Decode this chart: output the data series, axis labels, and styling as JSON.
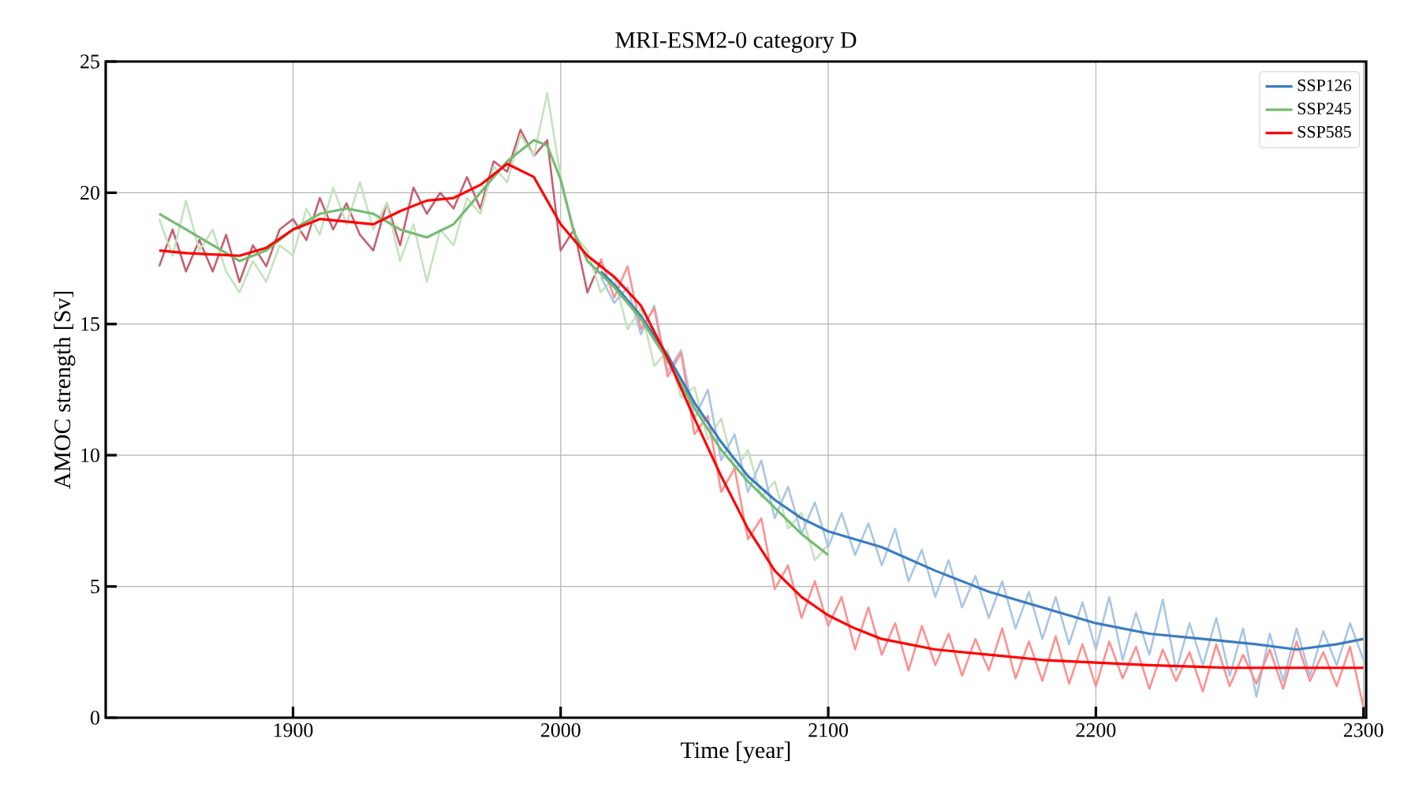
{
  "chart_data": {
    "type": "line",
    "title": "MRI-ESM2-0 category D",
    "xlabel": "Time [year]",
    "ylabel": "AMOC strength [Sv]",
    "xlim": [
      1830,
      2301
    ],
    "ylim": [
      0,
      25
    ],
    "xticks": [
      1900,
      2000,
      2100,
      2200,
      2300
    ],
    "yticks": [
      0,
      5,
      10,
      15,
      20,
      25
    ],
    "grid": true,
    "legend": "top right",
    "series": [
      {
        "color": "#c46070",
        "x": [
          1850,
          1855,
          1860,
          1865,
          1870,
          1875,
          1880,
          1885,
          1890,
          1895,
          1900,
          1905,
          1910,
          1915,
          1920,
          1925,
          1930,
          1935,
          1940,
          1945,
          1950,
          1955,
          1960,
          1965,
          1970,
          1975,
          1980,
          1985,
          1990,
          1995,
          2000,
          2005,
          2010,
          2015
        ],
        "values": [
          17.2,
          18.6,
          17.0,
          18.2,
          17.0,
          18.4,
          16.6,
          18.0,
          17.2,
          18.6,
          19.0,
          18.2,
          19.8,
          18.6,
          19.6,
          18.4,
          17.8,
          19.6,
          18.0,
          20.2,
          19.2,
          20.0,
          19.4,
          20.6,
          19.4,
          21.2,
          20.8,
          22.4,
          21.4,
          22.0,
          17.8,
          18.6,
          16.2,
          17.4
        ]
      },
      {
        "color": "#c4e2bf",
        "x": [
          1850,
          1855,
          1860,
          1865,
          1870,
          1875,
          1880,
          1885,
          1890,
          1895,
          1900,
          1905,
          1910,
          1915,
          1920,
          1925,
          1930,
          1935,
          1940,
          1945,
          1950,
          1955,
          1960,
          1965,
          1970,
          1975,
          1980,
          1985,
          1990,
          1995,
          2000,
          2005,
          2010,
          2015,
          2020,
          2025,
          2030,
          2035,
          2040,
          2045,
          2050,
          2055,
          2060,
          2065,
          2070,
          2075,
          2080,
          2085,
          2090,
          2095,
          2100
        ],
        "values": [
          19.0,
          17.6,
          19.7,
          17.8,
          18.6,
          17.0,
          16.2,
          17.4,
          16.6,
          18.0,
          17.6,
          19.4,
          18.4,
          20.2,
          18.8,
          20.4,
          18.6,
          19.6,
          17.4,
          18.8,
          16.6,
          18.6,
          18.0,
          19.8,
          19.2,
          21.0,
          20.4,
          22.2,
          21.4,
          23.8,
          20.6,
          18.4,
          17.8,
          16.2,
          16.8,
          14.8,
          15.6,
          13.4,
          14.0,
          12.2,
          12.6,
          10.6,
          11.4,
          9.4,
          10.2,
          8.4,
          9.0,
          7.2,
          7.8,
          6.0,
          6.6
        ]
      },
      {
        "color": "#a9c6e4",
        "x": [
          2015,
          2020,
          2025,
          2030,
          2035,
          2040,
          2045,
          2050,
          2055,
          2060,
          2065,
          2070,
          2075,
          2080,
          2085,
          2090,
          2095,
          2100,
          2105,
          2110,
          2115,
          2120,
          2125,
          2130,
          2135,
          2140,
          2145,
          2150,
          2155,
          2160,
          2165,
          2170,
          2175,
          2180,
          2185,
          2190,
          2195,
          2200,
          2205,
          2210,
          2215,
          2220,
          2225,
          2230,
          2235,
          2240,
          2245,
          2250,
          2255,
          2260,
          2265,
          2270,
          2275,
          2280,
          2285,
          2290,
          2295,
          2300
        ],
        "values": [
          16.8,
          15.8,
          16.4,
          14.6,
          15.7,
          13.2,
          14.0,
          11.4,
          12.5,
          9.8,
          10.8,
          8.6,
          9.8,
          7.6,
          8.8,
          7.0,
          8.2,
          6.5,
          7.8,
          6.2,
          7.4,
          5.8,
          7.2,
          5.2,
          6.4,
          4.6,
          6.0,
          4.2,
          5.4,
          3.8,
          5.2,
          3.4,
          4.8,
          3.0,
          4.6,
          2.8,
          4.4,
          2.6,
          4.6,
          2.2,
          4.0,
          2.4,
          4.5,
          1.8,
          3.6,
          2.0,
          3.8,
          1.6,
          3.4,
          0.8,
          3.2,
          1.4,
          3.4,
          1.6,
          3.3,
          2.0,
          3.6,
          2.2
        ]
      },
      {
        "color": "#ff9090",
        "x": [
          2015,
          2020,
          2025,
          2030,
          2035,
          2040,
          2045,
          2050,
          2055,
          2060,
          2065,
          2070,
          2075,
          2080,
          2085,
          2090,
          2095,
          2100,
          2105,
          2110,
          2115,
          2120,
          2125,
          2130,
          2135,
          2140,
          2145,
          2150,
          2155,
          2160,
          2165,
          2170,
          2175,
          2180,
          2185,
          2190,
          2195,
          2200,
          2205,
          2210,
          2215,
          2220,
          2225,
          2230,
          2235,
          2240,
          2245,
          2250,
          2255,
          2260,
          2265,
          2270,
          2275,
          2280,
          2285,
          2290,
          2295,
          2300
        ],
        "values": [
          17.5,
          16.0,
          17.2,
          14.8,
          15.6,
          13.0,
          13.9,
          10.8,
          11.5,
          8.6,
          9.5,
          6.8,
          7.6,
          4.9,
          5.8,
          3.8,
          5.2,
          3.5,
          4.6,
          2.6,
          4.2,
          2.4,
          3.6,
          1.8,
          3.5,
          2.0,
          3.2,
          1.6,
          3.0,
          1.8,
          3.4,
          1.5,
          2.9,
          1.4,
          3.1,
          1.3,
          2.8,
          1.2,
          2.9,
          1.5,
          2.7,
          1.1,
          2.6,
          1.4,
          2.5,
          1.0,
          2.8,
          1.2,
          2.4,
          1.3,
          2.6,
          1.1,
          2.9,
          1.4,
          2.5,
          1.2,
          2.7,
          0.4
        ]
      },
      {
        "name": "SSP126",
        "color": "#3a7cc0",
        "x": [
          2015,
          2020,
          2030,
          2040,
          2050,
          2060,
          2070,
          2080,
          2090,
          2100,
          2120,
          2140,
          2160,
          2180,
          2200,
          2220,
          2240,
          2260,
          2275,
          2290,
          2300
        ],
        "values": [
          17.0,
          16.5,
          15.3,
          13.8,
          12.0,
          10.5,
          9.2,
          8.3,
          7.6,
          7.1,
          6.5,
          5.6,
          4.8,
          4.2,
          3.6,
          3.2,
          3.0,
          2.8,
          2.6,
          2.8,
          3.0
        ]
      },
      {
        "name": "SSP245",
        "color": "#76bb72",
        "x": [
          1850,
          1860,
          1870,
          1880,
          1890,
          1900,
          1910,
          1920,
          1930,
          1940,
          1950,
          1960,
          1970,
          1980,
          1990,
          1995,
          2000,
          2005,
          2010,
          2020,
          2030,
          2040,
          2050,
          2060,
          2070,
          2080,
          2090,
          2100
        ],
        "values": [
          19.2,
          18.6,
          18.0,
          17.4,
          17.8,
          18.6,
          19.2,
          19.4,
          19.2,
          18.6,
          18.3,
          18.8,
          20.0,
          21.2,
          22.0,
          21.8,
          20.5,
          18.5,
          17.4,
          16.4,
          15.2,
          13.6,
          11.8,
          10.2,
          9.0,
          8.0,
          7.0,
          6.2
        ]
      },
      {
        "name": "SSP585",
        "color": "#ff0000",
        "x": [
          1850,
          1860,
          1880,
          1890,
          1900,
          1910,
          1920,
          1930,
          1940,
          1950,
          1960,
          1970,
          1980,
          1990,
          2000,
          2010,
          2020,
          2030,
          2040,
          2050,
          2060,
          2070,
          2080,
          2090,
          2100,
          2110,
          2120,
          2140,
          2160,
          2180,
          2200,
          2220,
          2250,
          2280,
          2300
        ],
        "values": [
          17.8,
          17.7,
          17.6,
          17.9,
          18.6,
          19.0,
          18.9,
          18.8,
          19.3,
          19.7,
          19.8,
          20.3,
          21.1,
          20.6,
          18.8,
          17.6,
          16.8,
          15.7,
          13.7,
          11.4,
          9.2,
          7.2,
          5.6,
          4.6,
          3.9,
          3.4,
          3.0,
          2.6,
          2.4,
          2.2,
          2.1,
          2.0,
          1.9,
          1.9,
          1.9
        ]
      }
    ]
  }
}
